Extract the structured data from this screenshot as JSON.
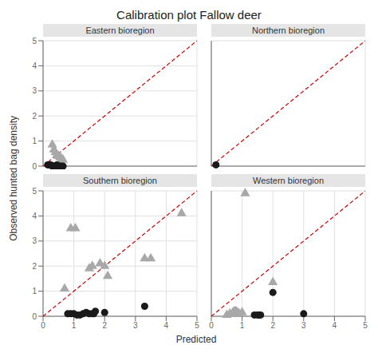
{
  "chart_data": {
    "type": "scatter",
    "title": "Calibration plot Fallow deer",
    "xlabel": "Predicted",
    "ylabel": "Observed hunted bag density",
    "xlim": [
      0,
      5
    ],
    "ylim": [
      0,
      5
    ],
    "xticks": [
      0,
      1,
      2,
      3,
      4,
      5
    ],
    "yticks": [
      0,
      1,
      2,
      3,
      4,
      5
    ],
    "grid": true,
    "subplots": [
      {
        "type": "scatter",
        "title": "Eastern bioregion",
        "series": [
          {
            "type": "line",
            "line_style": "dashed",
            "color": "#cc0000",
            "x": [
              0,
              5
            ],
            "values": [
              0,
              5
            ]
          },
          {
            "type": "scatter",
            "marker": "triangle",
            "color": "#a8a8a8",
            "x": [
              0.3,
              0.35,
              0.4,
              0.45,
              0.5,
              0.55,
              0.6,
              0.65
            ],
            "values": [
              0.85,
              0.65,
              0.55,
              0.45,
              0.4,
              0.35,
              0.3,
              0.25
            ]
          },
          {
            "type": "scatter",
            "marker": "circle",
            "color": "#1a1a1a",
            "x": [
              0.15,
              0.2,
              0.25,
              0.3,
              0.35,
              0.4,
              0.45,
              0.5,
              0.55,
              0.6,
              0.65
            ],
            "values": [
              0.05,
              0.05,
              0.05,
              0.0,
              0.0,
              0.0,
              0.05,
              0.0,
              0.0,
              0.0,
              0.0
            ]
          }
        ]
      },
      {
        "type": "scatter",
        "title": "Northern bioregion",
        "series": [
          {
            "type": "line",
            "line_style": "dashed",
            "color": "#cc0000",
            "x": [
              0,
              5
            ],
            "values": [
              0,
              5
            ]
          },
          {
            "type": "scatter",
            "marker": "circle",
            "color": "#1a1a1a",
            "x": [
              0.15
            ],
            "values": [
              0.05
            ]
          }
        ]
      },
      {
        "type": "scatter",
        "title": "Southern bioregion",
        "series": [
          {
            "type": "line",
            "line_style": "dashed",
            "color": "#cc0000",
            "x": [
              0,
              5
            ],
            "values": [
              0,
              5
            ]
          },
          {
            "type": "scatter",
            "marker": "triangle",
            "color": "#a8a8a8",
            "x": [
              0.7,
              0.9,
              1.05,
              1.5,
              1.6,
              1.85,
              2.0,
              2.1,
              3.3,
              3.5,
              4.5
            ],
            "values": [
              1.1,
              3.5,
              3.5,
              1.9,
              2.0,
              2.1,
              2.0,
              1.6,
              2.3,
              2.3,
              4.1
            ]
          },
          {
            "type": "scatter",
            "marker": "circle",
            "color": "#1a1a1a",
            "x": [
              0.8,
              0.9,
              1.0,
              1.1,
              1.2,
              1.3,
              1.4,
              1.5,
              1.6,
              1.65,
              1.7,
              2.0,
              3.3
            ],
            "values": [
              0.1,
              0.1,
              0.1,
              0.05,
              0.05,
              0.1,
              0.15,
              0.1,
              0.1,
              0.1,
              0.2,
              0.15,
              0.4
            ]
          }
        ]
      },
      {
        "type": "scatter",
        "title": "Western bioregion",
        "series": [
          {
            "type": "line",
            "line_style": "dashed",
            "color": "#cc0000",
            "x": [
              0,
              5
            ],
            "values": [
              0,
              5
            ]
          },
          {
            "type": "scatter",
            "marker": "triangle",
            "color": "#a8a8a8",
            "x": [
              0.5,
              0.6,
              0.7,
              0.75,
              0.8,
              0.85,
              0.9,
              1.0,
              1.1,
              2.0
            ],
            "values": [
              0.05,
              0.1,
              0.15,
              0.2,
              0.2,
              0.15,
              0.1,
              0.15,
              4.9,
              1.35
            ]
          },
          {
            "type": "scatter",
            "marker": "circle",
            "color": "#1a1a1a",
            "x": [
              1.4,
              1.5,
              1.55,
              1.6,
              2.0,
              3.0
            ],
            "values": [
              0.05,
              0.05,
              0.05,
              0.05,
              0.95,
              0.1
            ]
          }
        ]
      }
    ]
  }
}
